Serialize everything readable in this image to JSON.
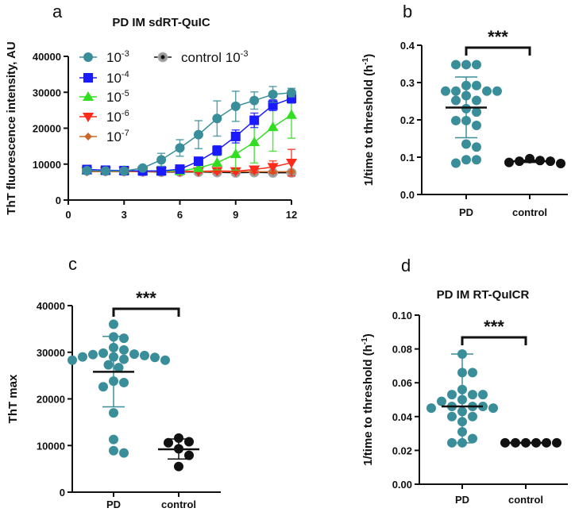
{
  "chart_data": [
    {
      "panel": "a",
      "type": "line",
      "title": "PD IM sdRT-QuIC",
      "xlabel": "",
      "ylabel": "ThT fluorescence intensity, AU",
      "xlim": [
        0,
        12
      ],
      "ylim": [
        0,
        40000
      ],
      "xticks": [
        "0",
        "3",
        "6",
        "9",
        "12"
      ],
      "yticks": [
        "0",
        "10000",
        "20000",
        "30000",
        "40000"
      ],
      "x": [
        1,
        2,
        3,
        4,
        5,
        6,
        7,
        8,
        9,
        10,
        11,
        12
      ],
      "series": [
        {
          "name_base": "10",
          "name_exp": "-3",
          "color": "#3a8e9a",
          "marker": "circle",
          "values": [
            8200,
            8100,
            8100,
            8900,
            11200,
            14500,
            18200,
            22700,
            26100,
            27700,
            29400,
            29900
          ],
          "errors": [
            300,
            200,
            200,
            400,
            1800,
            2300,
            3900,
            4900,
            4200,
            2400,
            2200,
            1200
          ]
        },
        {
          "name_base": "10",
          "name_exp": "-4",
          "color": "#1a1aff",
          "marker": "square",
          "values": [
            8500,
            8300,
            8200,
            8100,
            8100,
            8600,
            10800,
            13800,
            17700,
            22200,
            26400,
            28300
          ],
          "errors": [
            300,
            300,
            200,
            200,
            200,
            300,
            500,
            1300,
            1800,
            2000,
            1500,
            1300
          ]
        },
        {
          "name_base": "10",
          "name_exp": "-5",
          "color": "#33dd22",
          "marker": "triangle-up",
          "values": [
            8200,
            8200,
            8200,
            8100,
            8100,
            8100,
            8900,
            10400,
            12800,
            16100,
            20300,
            23700
          ],
          "errors": [
            200,
            200,
            200,
            200,
            200,
            300,
            800,
            2000,
            4500,
            5800,
            6700,
            6500
          ]
        },
        {
          "name_base": "10",
          "name_exp": "-6",
          "color": "#ff2a1a",
          "marker": "triangle-down",
          "values": [
            8100,
            8100,
            8100,
            8000,
            8000,
            8000,
            8000,
            8100,
            8000,
            8500,
            9200,
            10400
          ],
          "errors": [
            200,
            200,
            200,
            200,
            200,
            200,
            400,
            600,
            600,
            900,
            1700,
            3700
          ]
        },
        {
          "name_base": "10",
          "name_exp": "-7",
          "color": "#c8682a",
          "marker": "diamond",
          "values": [
            7900,
            7900,
            7900,
            7900,
            7900,
            7900,
            7900,
            7900,
            7900,
            7900,
            7900,
            7900
          ],
          "errors": [
            0,
            0,
            0,
            0,
            0,
            0,
            0,
            0,
            0,
            0,
            0,
            0
          ]
        },
        {
          "name_base": "control 10",
          "name_exp": "-3",
          "color": "#111111",
          "marker": "circle-ringed",
          "values": [
            8200,
            8100,
            8000,
            7900,
            7800,
            7800,
            7800,
            7700,
            7600,
            7700,
            7600,
            7600
          ],
          "errors": [
            0,
            0,
            0,
            0,
            0,
            0,
            0,
            0,
            0,
            0,
            0,
            0
          ]
        }
      ]
    },
    {
      "panel": "b",
      "type": "scatter",
      "title": "",
      "ylabel_main": "1/time to threshold (h",
      "ylabel_exp": "-1",
      "ylabel_end": ")",
      "ylim": [
        0,
        0.4
      ],
      "yticks": [
        "0.0",
        "0.1",
        "0.2",
        "0.3",
        "0.4"
      ],
      "categories": [
        "PD",
        "control"
      ],
      "significance": "***",
      "groups": [
        {
          "name": "PD",
          "color": "#3a8e9a",
          "center": 0.233,
          "err_low": 0.152,
          "err_high": 0.315,
          "values": [
            0.348,
            0.348,
            0.348,
            0.292,
            0.292,
            0.277,
            0.277,
            0.277,
            0.277,
            0.265,
            0.252,
            0.252,
            0.23,
            0.221,
            0.198,
            0.198,
            0.185,
            0.135,
            0.127,
            0.093,
            0.093,
            0.084
          ]
        },
        {
          "name": "control",
          "color": "#111111",
          "center": 0.089,
          "err_low": 0.086,
          "err_high": 0.092,
          "values": [
            0.089,
            0.096,
            0.086,
            0.091,
            0.083,
            0.089
          ]
        }
      ]
    },
    {
      "panel": "c",
      "type": "scatter",
      "title": "",
      "ylabel_main": "ThT max",
      "ylabel_exp": "",
      "ylabel_end": "",
      "ylim": [
        0,
        40000
      ],
      "yticks": [
        "0",
        "10000",
        "20000",
        "30000",
        "40000"
      ],
      "categories": [
        "PD",
        "control"
      ],
      "significance": "***",
      "groups": [
        {
          "name": "PD",
          "color": "#3a8e9a",
          "center": 25800,
          "err_low": 18300,
          "err_high": 33400,
          "values": [
            36000,
            33300,
            33000,
            30500,
            31000,
            29800,
            29600,
            29000,
            29000,
            29500,
            29300,
            28900,
            28300,
            28300,
            28500,
            27300,
            26700,
            23800,
            23500,
            22600,
            17000,
            11300,
            8900,
            8400
          ]
        },
        {
          "name": "control",
          "color": "#111111",
          "center": 9200,
          "err_low": 7100,
          "err_high": 11400,
          "values": [
            10800,
            11600,
            10600,
            9300,
            7900,
            5500
          ]
        }
      ]
    },
    {
      "panel": "d",
      "type": "scatter",
      "title": "PD IM RT-QuICR",
      "ylabel_main": "1/time to threshold (h",
      "ylabel_exp": "-1",
      "ylabel_end": ")",
      "ylim": [
        0,
        0.1
      ],
      "yticks": [
        "0.00",
        "0.02",
        "0.04",
        "0.06",
        "0.08",
        "0.10"
      ],
      "categories": [
        "PD",
        "control"
      ],
      "significance": "***",
      "groups": [
        {
          "name": "PD",
          "color": "#3a8e9a",
          "center": 0.046,
          "err_low": 0.0245,
          "err_high": 0.077,
          "values": [
            0.077,
            0.066,
            0.066,
            0.056,
            0.053,
            0.053,
            0.053,
            0.05,
            0.049,
            0.046,
            0.046,
            0.046,
            0.045,
            0.045,
            0.043,
            0.04,
            0.04,
            0.037,
            0.031,
            0.027,
            0.0245,
            0.0245
          ]
        },
        {
          "name": "control",
          "color": "#111111",
          "center": 0.0245,
          "err_low": 0.0245,
          "err_high": 0.0245,
          "values": [
            0.0245,
            0.0245,
            0.0245,
            0.0245,
            0.0245,
            0.0245
          ]
        }
      ]
    }
  ]
}
